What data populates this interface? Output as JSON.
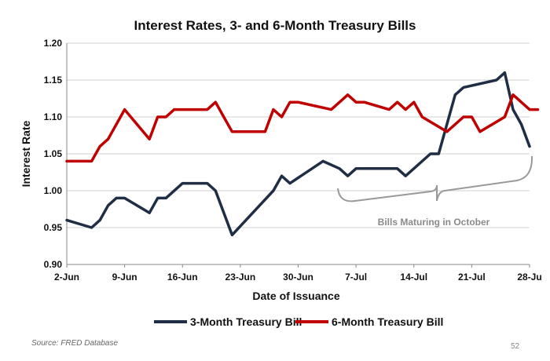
{
  "chart_data": {
    "type": "line",
    "title": "Interest Rates, 3- and 6-Month Treasury Bills",
    "xlabel": "Date of Issuance",
    "ylabel": "Interest Rate",
    "x_tick_labels": [
      "2-Jun",
      "9-Jun",
      "16-Jun",
      "23-Jun",
      "30-Jun",
      "7-Jul",
      "14-Jul",
      "21-Jul",
      "28-Ju"
    ],
    "x_range_days": [
      0,
      56
    ],
    "ylim": [
      0.9,
      1.2
    ],
    "y_ticks": [
      0.9,
      0.95,
      1.0,
      1.05,
      1.1,
      1.15,
      1.2
    ],
    "grid": "horizontal",
    "legend_position": "bottom",
    "series": [
      {
        "name": "3-Month Treasury Bill",
        "color": "#1f2d45",
        "points": [
          [
            0,
            0.96
          ],
          [
            3,
            0.95
          ],
          [
            4,
            0.96
          ],
          [
            5,
            0.98
          ],
          [
            6,
            0.99
          ],
          [
            7,
            0.99
          ],
          [
            10,
            0.97
          ],
          [
            11,
            0.99
          ],
          [
            12,
            0.99
          ],
          [
            14,
            1.01
          ],
          [
            17,
            1.01
          ],
          [
            18,
            1.0
          ],
          [
            20,
            0.94
          ],
          [
            25,
            1.0
          ],
          [
            26,
            1.02
          ],
          [
            27,
            1.01
          ],
          [
            31,
            1.04
          ],
          [
            33,
            1.03
          ],
          [
            34,
            1.02
          ],
          [
            35,
            1.03
          ],
          [
            40,
            1.03
          ],
          [
            41,
            1.02
          ],
          [
            44,
            1.05
          ],
          [
            45,
            1.05
          ],
          [
            47,
            1.13
          ],
          [
            48,
            1.14
          ],
          [
            52,
            1.15
          ],
          [
            53,
            1.16
          ],
          [
            54,
            1.11
          ],
          [
            55,
            1.09
          ],
          [
            56,
            1.06
          ]
        ]
      },
      {
        "name": "6-Month Treasury Bill",
        "color": "#c00000",
        "points": [
          [
            0,
            1.04
          ],
          [
            3,
            1.04
          ],
          [
            4,
            1.06
          ],
          [
            5,
            1.07
          ],
          [
            7,
            1.11
          ],
          [
            10,
            1.07
          ],
          [
            11,
            1.1
          ],
          [
            12,
            1.1
          ],
          [
            13,
            1.11
          ],
          [
            17,
            1.11
          ],
          [
            18,
            1.12
          ],
          [
            19,
            1.1
          ],
          [
            20,
            1.08
          ],
          [
            24,
            1.08
          ],
          [
            25,
            1.11
          ],
          [
            26,
            1.1
          ],
          [
            27,
            1.12
          ],
          [
            28,
            1.12
          ],
          [
            32,
            1.11
          ],
          [
            34,
            1.13
          ],
          [
            35,
            1.12
          ],
          [
            36,
            1.12
          ],
          [
            39,
            1.11
          ],
          [
            40,
            1.12
          ],
          [
            41,
            1.11
          ],
          [
            42,
            1.12
          ],
          [
            43,
            1.1
          ],
          [
            46,
            1.08
          ],
          [
            48,
            1.1
          ],
          [
            49,
            1.1
          ],
          [
            50,
            1.08
          ],
          [
            53,
            1.1
          ],
          [
            54,
            1.13
          ],
          [
            55,
            1.12
          ],
          [
            56,
            1.11
          ],
          [
            57,
            1.11
          ]
        ]
      }
    ],
    "annotation": {
      "text": "Bills Maturing in October",
      "color": "#8a8a8a"
    }
  },
  "footer": {
    "source": "Source: FRED Database",
    "page_number": "52"
  }
}
